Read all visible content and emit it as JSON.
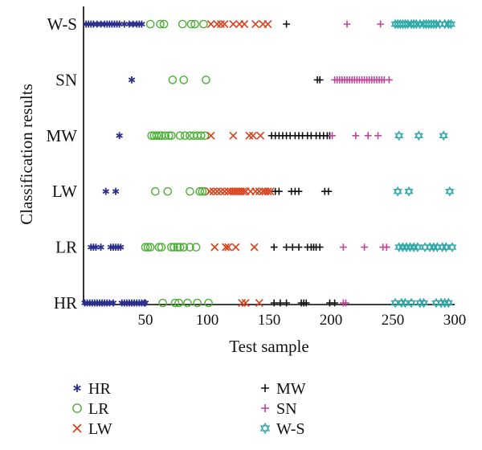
{
  "chart_data": {
    "type": "scatter",
    "title": "",
    "xlabel": "Test sample",
    "ylabel": "Classification results",
    "xlim": [
      0,
      300
    ],
    "x_ticks": [
      "50",
      "100",
      "150",
      "200",
      "250",
      "300"
    ],
    "x_tick_values": [
      50,
      100,
      150,
      200,
      250,
      300
    ],
    "categories": [
      "HR",
      "LR",
      "LW",
      "MW",
      "SN",
      "W-S"
    ],
    "grid": false,
    "legend": {
      "position": "bottom",
      "columns": 2
    },
    "series": [
      {
        "name": "HR",
        "marker": "asterisk",
        "color": "#2b2f8e",
        "points": [
          [
            2,
            "W-S"
          ],
          [
            4,
            "W-S"
          ],
          [
            6,
            "W-S"
          ],
          [
            8,
            "W-S"
          ],
          [
            11,
            "W-S"
          ],
          [
            14,
            "W-S"
          ],
          [
            17,
            "W-S"
          ],
          [
            19,
            "W-S"
          ],
          [
            21,
            "W-S"
          ],
          [
            23,
            "W-S"
          ],
          [
            25,
            "W-S"
          ],
          [
            27,
            "W-S"
          ],
          [
            29,
            "W-S"
          ],
          [
            33,
            "W-S"
          ],
          [
            37,
            "W-S"
          ],
          [
            40,
            "W-S"
          ],
          [
            43,
            "W-S"
          ],
          [
            45,
            "W-S"
          ],
          [
            47,
            "W-S"
          ],
          [
            39,
            "SN"
          ],
          [
            29,
            "MW"
          ],
          [
            18,
            "LW"
          ],
          [
            26,
            "LW"
          ],
          [
            6,
            "LR"
          ],
          [
            8,
            "LR"
          ],
          [
            10,
            "LR"
          ],
          [
            14,
            "LR"
          ],
          [
            22,
            "LR"
          ],
          [
            24,
            "LR"
          ],
          [
            26,
            "LR"
          ],
          [
            28,
            "LR"
          ],
          [
            30,
            "LR"
          ],
          [
            1,
            "HR"
          ],
          [
            3,
            "HR"
          ],
          [
            5,
            "HR"
          ],
          [
            7,
            "HR"
          ],
          [
            9,
            "HR"
          ],
          [
            11,
            "HR"
          ],
          [
            13,
            "HR"
          ],
          [
            15,
            "HR"
          ],
          [
            17,
            "HR"
          ],
          [
            19,
            "HR"
          ],
          [
            21,
            "HR"
          ],
          [
            24,
            "HR"
          ],
          [
            31,
            "HR"
          ],
          [
            33,
            "HR"
          ],
          [
            35,
            "HR"
          ],
          [
            37,
            "HR"
          ],
          [
            39,
            "HR"
          ],
          [
            41,
            "HR"
          ],
          [
            43,
            "HR"
          ],
          [
            45,
            "HR"
          ],
          [
            47,
            "HR"
          ],
          [
            49,
            "HR"
          ],
          [
            50,
            "HR"
          ]
        ]
      },
      {
        "name": "LR",
        "marker": "circle",
        "color": "#4caf36",
        "points": [
          [
            54,
            "W-S"
          ],
          [
            62,
            "W-S"
          ],
          [
            65,
            "W-S"
          ],
          [
            80,
            "W-S"
          ],
          [
            87,
            "W-S"
          ],
          [
            90,
            "W-S"
          ],
          [
            97,
            "W-S"
          ],
          [
            72,
            "SN"
          ],
          [
            81,
            "SN"
          ],
          [
            99,
            "SN"
          ],
          [
            55,
            "MW"
          ],
          [
            57,
            "MW"
          ],
          [
            59,
            "MW"
          ],
          [
            61,
            "MW"
          ],
          [
            63,
            "MW"
          ],
          [
            66,
            "MW"
          ],
          [
            69,
            "MW"
          ],
          [
            71,
            "MW"
          ],
          [
            78,
            "MW"
          ],
          [
            82,
            "MW"
          ],
          [
            86,
            "MW"
          ],
          [
            89,
            "MW"
          ],
          [
            92,
            "MW"
          ],
          [
            95,
            "MW"
          ],
          [
            98,
            "MW"
          ],
          [
            58,
            "LW"
          ],
          [
            68,
            "LW"
          ],
          [
            86,
            "LW"
          ],
          [
            94,
            "LW"
          ],
          [
            96,
            "LW"
          ],
          [
            98,
            "LW"
          ],
          [
            50,
            "LR"
          ],
          [
            52,
            "LR"
          ],
          [
            54,
            "LR"
          ],
          [
            61,
            "LR"
          ],
          [
            63,
            "LR"
          ],
          [
            71,
            "LR"
          ],
          [
            73,
            "LR"
          ],
          [
            76,
            "LR"
          ],
          [
            78,
            "LR"
          ],
          [
            81,
            "LR"
          ],
          [
            86,
            "LR"
          ],
          [
            91,
            "LR"
          ],
          [
            64,
            "HR"
          ],
          [
            74,
            "HR"
          ],
          [
            77,
            "HR"
          ],
          [
            84,
            "HR"
          ],
          [
            92,
            "HR"
          ],
          [
            101,
            "HR"
          ]
        ]
      },
      {
        "name": "LW",
        "marker": "x",
        "color": "#d9401c",
        "points": [
          [
            103,
            "W-S"
          ],
          [
            108,
            "W-S"
          ],
          [
            111,
            "W-S"
          ],
          [
            114,
            "W-S"
          ],
          [
            121,
            "W-S"
          ],
          [
            126,
            "W-S"
          ],
          [
            130,
            "W-S"
          ],
          [
            139,
            "W-S"
          ],
          [
            145,
            "W-S"
          ],
          [
            149,
            "W-S"
          ],
          [
            103,
            "MW"
          ],
          [
            121,
            "MW"
          ],
          [
            134,
            "MW"
          ],
          [
            137,
            "MW"
          ],
          [
            143,
            "MW"
          ],
          [
            102,
            "LW"
          ],
          [
            105,
            "LW"
          ],
          [
            108,
            "LW"
          ],
          [
            111,
            "LW"
          ],
          [
            114,
            "LW"
          ],
          [
            117,
            "LW"
          ],
          [
            119,
            "LW"
          ],
          [
            121,
            "LW"
          ],
          [
            123,
            "LW"
          ],
          [
            125,
            "LW"
          ],
          [
            127,
            "LW"
          ],
          [
            129,
            "LW"
          ],
          [
            131,
            "LW"
          ],
          [
            135,
            "LW"
          ],
          [
            139,
            "LW"
          ],
          [
            142,
            "LW"
          ],
          [
            145,
            "LW"
          ],
          [
            147,
            "LW"
          ],
          [
            149,
            "LW"
          ],
          [
            151,
            "LW"
          ],
          [
            106,
            "LR"
          ],
          [
            115,
            "LR"
          ],
          [
            117,
            "LR"
          ],
          [
            123,
            "LR"
          ],
          [
            138,
            "LR"
          ],
          [
            128,
            "HR"
          ],
          [
            131,
            "HR"
          ],
          [
            142,
            "HR"
          ]
        ]
      },
      {
        "name": "MW",
        "marker": "plus",
        "color": "#111111",
        "points": [
          [
            164,
            "W-S"
          ],
          [
            189,
            "SN"
          ],
          [
            191,
            "SN"
          ],
          [
            152,
            "MW"
          ],
          [
            155,
            "MW"
          ],
          [
            158,
            "MW"
          ],
          [
            161,
            "MW"
          ],
          [
            164,
            "MW"
          ],
          [
            167,
            "MW"
          ],
          [
            171,
            "MW"
          ],
          [
            174,
            "MW"
          ],
          [
            177,
            "MW"
          ],
          [
            181,
            "MW"
          ],
          [
            184,
            "MW"
          ],
          [
            188,
            "MW"
          ],
          [
            191,
            "MW"
          ],
          [
            194,
            "MW"
          ],
          [
            197,
            "MW"
          ],
          [
            199,
            "MW"
          ],
          [
            155,
            "LW"
          ],
          [
            158,
            "LW"
          ],
          [
            168,
            "LW"
          ],
          [
            171,
            "LW"
          ],
          [
            174,
            "LW"
          ],
          [
            195,
            "LW"
          ],
          [
            198,
            "LW"
          ],
          [
            154,
            "LR"
          ],
          [
            164,
            "LR"
          ],
          [
            169,
            "LR"
          ],
          [
            174,
            "LR"
          ],
          [
            181,
            "LR"
          ],
          [
            184,
            "LR"
          ],
          [
            186,
            "LR"
          ],
          [
            188,
            "LR"
          ],
          [
            191,
            "LR"
          ],
          [
            154,
            "HR"
          ],
          [
            159,
            "HR"
          ],
          [
            164,
            "HR"
          ],
          [
            176,
            "HR"
          ],
          [
            178,
            "HR"
          ],
          [
            180,
            "HR"
          ],
          [
            199,
            "HR"
          ],
          [
            203,
            "HR"
          ]
        ]
      },
      {
        "name": "SN",
        "marker": "plus",
        "color": "#c0449c",
        "points": [
          [
            213,
            "W-S"
          ],
          [
            240,
            "W-S"
          ],
          [
            203,
            "SN"
          ],
          [
            205,
            "SN"
          ],
          [
            207,
            "SN"
          ],
          [
            209,
            "SN"
          ],
          [
            211,
            "SN"
          ],
          [
            213,
            "SN"
          ],
          [
            215,
            "SN"
          ],
          [
            217,
            "SN"
          ],
          [
            219,
            "SN"
          ],
          [
            221,
            "SN"
          ],
          [
            223,
            "SN"
          ],
          [
            225,
            "SN"
          ],
          [
            227,
            "SN"
          ],
          [
            229,
            "SN"
          ],
          [
            231,
            "SN"
          ],
          [
            233,
            "SN"
          ],
          [
            235,
            "SN"
          ],
          [
            237,
            "SN"
          ],
          [
            239,
            "SN"
          ],
          [
            241,
            "SN"
          ],
          [
            243,
            "SN"
          ],
          [
            247,
            "SN"
          ],
          [
            201,
            "MW"
          ],
          [
            220,
            "MW"
          ],
          [
            230,
            "MW"
          ],
          [
            238,
            "MW"
          ],
          [
            210,
            "LR"
          ],
          [
            227,
            "LR"
          ],
          [
            242,
            "LR"
          ],
          [
            245,
            "LR"
          ],
          [
            210,
            "HR"
          ],
          [
            212,
            "HR"
          ]
        ]
      },
      {
        "name": "W-S",
        "marker": "star",
        "color": "#2fa7a8",
        "points": [
          [
            252,
            "W-S"
          ],
          [
            254,
            "W-S"
          ],
          [
            256,
            "W-S"
          ],
          [
            258,
            "W-S"
          ],
          [
            260,
            "W-S"
          ],
          [
            262,
            "W-S"
          ],
          [
            265,
            "W-S"
          ],
          [
            267,
            "W-S"
          ],
          [
            269,
            "W-S"
          ],
          [
            272,
            "W-S"
          ],
          [
            275,
            "W-S"
          ],
          [
            277,
            "W-S"
          ],
          [
            279,
            "W-S"
          ],
          [
            281,
            "W-S"
          ],
          [
            283,
            "W-S"
          ],
          [
            285,
            "W-S"
          ],
          [
            288,
            "W-S"
          ],
          [
            292,
            "W-S"
          ],
          [
            295,
            "W-S"
          ],
          [
            297,
            "W-S"
          ],
          [
            255,
            "MW"
          ],
          [
            271,
            "MW"
          ],
          [
            291,
            "MW"
          ],
          [
            254,
            "LW"
          ],
          [
            263,
            "LW"
          ],
          [
            296,
            "LW"
          ],
          [
            255,
            "LR"
          ],
          [
            258,
            "LR"
          ],
          [
            261,
            "LR"
          ],
          [
            264,
            "LR"
          ],
          [
            267,
            "LR"
          ],
          [
            270,
            "LR"
          ],
          [
            276,
            "LR"
          ],
          [
            280,
            "LR"
          ],
          [
            283,
            "LR"
          ],
          [
            286,
            "LR"
          ],
          [
            290,
            "LR"
          ],
          [
            293,
            "LR"
          ],
          [
            298,
            "LR"
          ],
          [
            252,
            "HR"
          ],
          [
            257,
            "HR"
          ],
          [
            260,
            "HR"
          ],
          [
            265,
            "HR"
          ],
          [
            272,
            "HR"
          ],
          [
            275,
            "HR"
          ],
          [
            285,
            "HR"
          ],
          [
            289,
            "HR"
          ],
          [
            292,
            "HR"
          ],
          [
            295,
            "HR"
          ]
        ]
      }
    ]
  }
}
